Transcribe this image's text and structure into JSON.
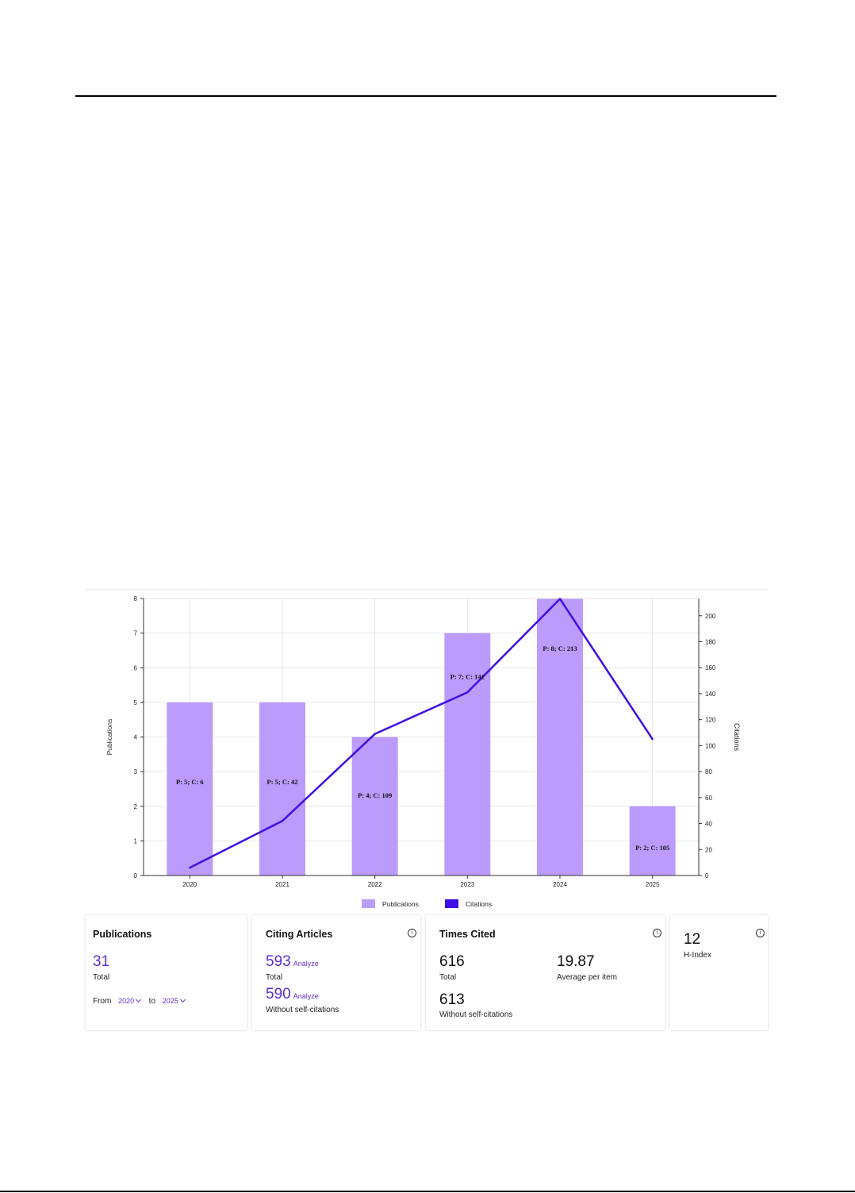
{
  "chart_data": {
    "type": "bar",
    "categories": [
      "2020",
      "2021",
      "2022",
      "2023",
      "2024",
      "2025"
    ],
    "series": [
      {
        "name": "Publications",
        "kind": "bar",
        "axis": "left",
        "values": [
          5,
          5,
          4,
          7,
          8,
          2
        ],
        "color": "#bb9bfb"
      },
      {
        "name": "Citations",
        "kind": "line",
        "axis": "right",
        "values": [
          6,
          42,
          109,
          141,
          213,
          105
        ],
        "color": "#3f0ee8"
      }
    ],
    "bar_labels": [
      "P: 5; C: 6",
      "P: 5; C: 42",
      "P: 4; C: 109",
      "P: 7; C: 141",
      "P: 8; C: 213",
      "P: 2; C: 105"
    ],
    "ylabel_left": "Publications",
    "ylabel_right": "Citations",
    "ylim_left": [
      0,
      8
    ],
    "ylim_right": [
      0,
      213.3
    ],
    "yticks_left": [
      "0",
      "1",
      "2",
      "3",
      "4",
      "5",
      "6",
      "7",
      "8"
    ],
    "yticks_right": [
      "0",
      "20",
      "40",
      "60",
      "80",
      "100",
      "120",
      "140",
      "160",
      "180",
      "200"
    ],
    "legend": [
      "Publications",
      "Citations"
    ],
    "legend_position": "bottom-center",
    "grid": true
  },
  "cards": {
    "publications": {
      "title": "Publications",
      "value": "31",
      "value_caption": "Total",
      "from_label": "From",
      "from_value": "2020",
      "to_label": "to",
      "to_value": "2025"
    },
    "citing_articles": {
      "title": "Citing Articles",
      "total_value": "593",
      "total_link": "Analyze",
      "total_caption": "Total",
      "noself_value": "590",
      "noself_link": "Analyze",
      "noself_caption": "Without self-citations",
      "info_icon": "info-icon"
    },
    "times_cited": {
      "title": "Times Cited",
      "total_value": "616",
      "total_caption": "Total",
      "average_value": "19.87",
      "average_caption": "Average per item",
      "noself_value": "613",
      "noself_caption": "Without self-citations",
      "info_icon": "info-icon"
    },
    "h_index": {
      "value": "12",
      "caption": "H-Index",
      "info_icon": "info-icon"
    }
  }
}
